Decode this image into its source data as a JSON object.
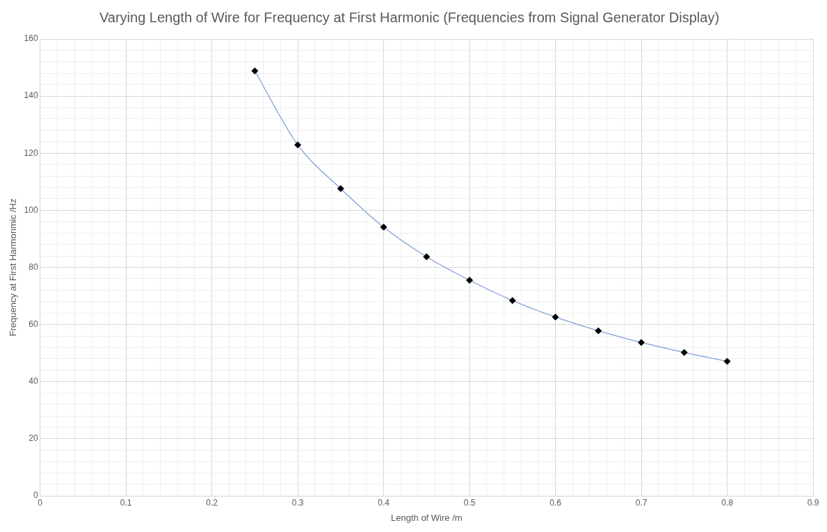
{
  "chart_data": {
    "type": "scatter",
    "title": "Varying Length of Wire for Frequency at First Harmonic (Frequencies from Signal Generator Display)",
    "xlabel": "Length of Wire /m",
    "ylabel": "Frequency at First Harmonmic /Hz",
    "x": [
      0.25,
      0.3,
      0.35,
      0.4,
      0.45,
      0.5,
      0.55,
      0.6,
      0.65,
      0.7,
      0.75,
      0.8
    ],
    "series": [
      {
        "type": "line",
        "color": "#7f9fd8",
        "marker": "none",
        "line_style": "solid",
        "values": [
          148.8,
          122.9,
          107.6,
          94.1,
          83.7,
          75.5,
          68.4,
          62.6,
          57.8,
          53.7,
          50.2,
          47.1
        ]
      },
      {
        "type": "scatter",
        "color": "#000000",
        "marker": "diamond",
        "values": [
          148.8,
          122.9,
          107.6,
          94.1,
          83.7,
          75.5,
          68.4,
          62.6,
          57.8,
          53.7,
          50.2,
          47.1
        ]
      }
    ],
    "xlim": [
      0,
      0.9
    ],
    "ylim": [
      0,
      160
    ],
    "xticks": [
      0,
      {
        "value": 0.02,
        "label": null
      },
      {
        "value": 0.04,
        "label": null
      },
      {
        "value": 0.06,
        "label": null
      },
      {
        "value": 0.08,
        "label": null
      },
      0.1,
      {
        "value": 0.12,
        "label": null
      },
      {
        "value": 0.14,
        "label": null
      },
      {
        "value": 0.16,
        "label": null
      },
      {
        "value": 0.18,
        "label": null
      },
      0.2,
      {
        "value": 0.22,
        "label": null
      },
      {
        "value": 0.24,
        "label": null
      },
      {
        "value": 0.26,
        "label": null
      },
      {
        "value": 0.28,
        "label": null
      },
      0.3,
      {
        "value": 0.32,
        "label": null
      },
      {
        "value": 0.34,
        "label": null
      },
      {
        "value": 0.36,
        "label": null
      },
      {
        "value": 0.38,
        "label": null
      },
      0.4,
      {
        "value": 0.42,
        "label": null
      },
      {
        "value": 0.44,
        "label": null
      },
      {
        "value": 0.46,
        "label": null
      },
      {
        "value": 0.48,
        "label": null
      },
      0.5,
      {
        "value": 0.52,
        "label": null
      },
      {
        "value": 0.54,
        "label": null
      },
      {
        "value": 0.56,
        "label": null
      },
      {
        "value": 0.58,
        "label": null
      },
      0.6,
      {
        "value": 0.62,
        "label": null
      },
      {
        "value": 0.64,
        "label": null
      },
      {
        "value": 0.66,
        "label": null
      },
      {
        "value": 0.68,
        "label": null
      },
      0.7,
      {
        "value": 0.72,
        "label": null
      },
      {
        "value": 0.74,
        "label": null
      },
      {
        "value": 0.76,
        "label": null
      },
      {
        "value": 0.78,
        "label": null
      },
      0.8,
      {
        "value": 0.82,
        "label": null
      },
      {
        "value": 0.84,
        "label": null
      },
      {
        "value": 0.86,
        "label": null
      },
      {
        "value": 0.88,
        "label": null
      },
      0.9
    ],
    "yticks": [
      0,
      {
        "value": 4,
        "label": null
      },
      {
        "value": 8,
        "label": null
      },
      {
        "value": 12,
        "label": null
      },
      {
        "value": 16,
        "label": null
      },
      20,
      {
        "value": 24,
        "label": null
      },
      {
        "value": 28,
        "label": null
      },
      {
        "value": 32,
        "label": null
      },
      {
        "value": 36,
        "label": null
      },
      40,
      {
        "value": 44,
        "label": null
      },
      {
        "value": 48,
        "label": null
      },
      {
        "value": 52,
        "label": null
      },
      {
        "value": 56,
        "label": null
      },
      60,
      {
        "value": 64,
        "label": null
      },
      {
        "value": 68,
        "label": null
      },
      {
        "value": 72,
        "label": null
      },
      {
        "value": 76,
        "label": null
      },
      80,
      {
        "value": 84,
        "label": null
      },
      {
        "value": 88,
        "label": null
      },
      {
        "value": 92,
        "label": null
      },
      {
        "value": 96,
        "label": null
      },
      100,
      {
        "value": 104,
        "label": null
      },
      {
        "value": 108,
        "label": null
      },
      {
        "value": 112,
        "label": null
      },
      {
        "value": 116,
        "label": null
      },
      120,
      {
        "value": 124,
        "label": null
      },
      {
        "value": 128,
        "label": null
      },
      {
        "value": 132,
        "label": null
      },
      {
        "value": 136,
        "label": null
      },
      140,
      {
        "value": 144,
        "label": null
      },
      {
        "value": 148,
        "label": null
      },
      {
        "value": 152,
        "label": null
      },
      {
        "value": 156,
        "label": null
      },
      160
    ],
    "grid": true,
    "legend": false
  }
}
